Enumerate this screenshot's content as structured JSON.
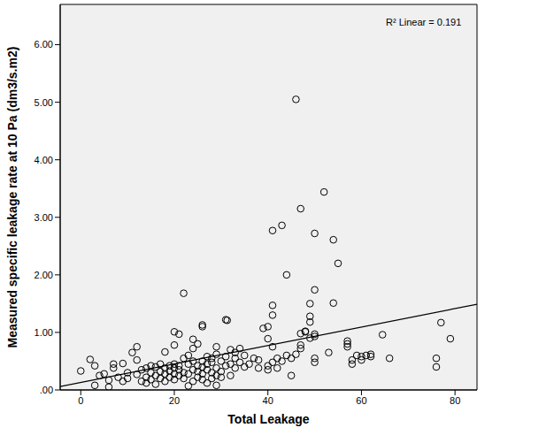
{
  "chart_data": {
    "type": "scatter",
    "x_label": "Total Leakage",
    "y_label": "Measured specific leakage rate at 10 Pa (dm3/s.m2)",
    "annotation": "R² Linear = 0.191",
    "color": "#000000",
    "marker": "circle-open",
    "grid": false,
    "xlim": [
      -4.4,
      84.7
    ],
    "xticks": [
      0,
      20,
      40,
      60,
      80
    ],
    "ylim": [
      0,
      6.7
    ],
    "yticks": [
      {
        "value": 0,
        "label": ".00"
      },
      {
        "value": 1,
        "label": "1.00"
      },
      {
        "value": 2,
        "label": "2.00"
      },
      {
        "value": 3,
        "label": "3.00"
      },
      {
        "value": 4,
        "label": "4.00"
      },
      {
        "value": 5,
        "label": "5.00"
      },
      {
        "value": 6,
        "label": "6.00"
      }
    ],
    "x": [
      0,
      2,
      3,
      3,
      4,
      5,
      6,
      6,
      7,
      7,
      8,
      9,
      9,
      10,
      10,
      11,
      12,
      12,
      12,
      13,
      13,
      14,
      14,
      14,
      15,
      15,
      15,
      16,
      16,
      16,
      17,
      17,
      17,
      18,
      18,
      18,
      18,
      19,
      19,
      19,
      20,
      20,
      20,
      20,
      20,
      21,
      21,
      21,
      22,
      22,
      22,
      23,
      23,
      23,
      23,
      24,
      24,
      24,
      24,
      25,
      25,
      25,
      25,
      26,
      26,
      26,
      26,
      27,
      27,
      27,
      27,
      28,
      28,
      28,
      28,
      29,
      29,
      29,
      29,
      29,
      30,
      30,
      30,
      31,
      31,
      32,
      32,
      32,
      33,
      33,
      33,
      34,
      34,
      35,
      35,
      36,
      37,
      38,
      38,
      40,
      40,
      41,
      41,
      42,
      42,
      43,
      44,
      45,
      45,
      46,
      47,
      47,
      48,
      49,
      50,
      50,
      53,
      57,
      57,
      57,
      58,
      58,
      59,
      60,
      60,
      61,
      62,
      62,
      66,
      76,
      76,
      46,
      52,
      47,
      43,
      41,
      50,
      54,
      55,
      44,
      50,
      22,
      41,
      49,
      54,
      41,
      49,
      31,
      31.3,
      26,
      26,
      40,
      39,
      49,
      77,
      20,
      21,
      47,
      50,
      50,
      48,
      64.5,
      79,
      40,
      24
    ],
    "values": [
      0.33,
      0.53,
      0.42,
      0.08,
      0.25,
      0.28,
      0.05,
      0.17,
      0.45,
      0.38,
      0.22,
      0.15,
      0.46,
      0.2,
      0.3,
      0.65,
      0.75,
      0.52,
      0.27,
      0.35,
      0.15,
      0.12,
      0.22,
      0.38,
      0.18,
      0.42,
      0.3,
      0.25,
      0.1,
      0.4,
      0.45,
      0.2,
      0.32,
      0.15,
      0.28,
      0.66,
      0.38,
      0.22,
      0.42,
      0.33,
      0.18,
      0.28,
      0.38,
      0.45,
      0.78,
      0.35,
      0.25,
      0.42,
      0.55,
      0.3,
      0.2,
      0.07,
      0.45,
      0.6,
      0.28,
      0.35,
      0.5,
      0.15,
      0.72,
      0.42,
      0.32,
      0.22,
      0.8,
      0.5,
      0.4,
      0.18,
      0.28,
      0.12,
      0.45,
      0.58,
      0.35,
      0.2,
      0.48,
      0.3,
      0.55,
      0.08,
      0.25,
      0.38,
      0.62,
      0.75,
      0.5,
      0.22,
      0.32,
      0.42,
      0.58,
      0.25,
      0.45,
      0.7,
      0.38,
      0.55,
      0.65,
      0.48,
      0.72,
      0.4,
      0.6,
      0.45,
      0.55,
      0.38,
      0.52,
      0.42,
      0.35,
      0.48,
      0.75,
      0.55,
      0.38,
      0.5,
      0.6,
      0.25,
      0.55,
      0.62,
      0.72,
      0.78,
      1.02,
      0.9,
      0.55,
      0.48,
      0.65,
      0.85,
      0.8,
      0.75,
      0.52,
      0.45,
      0.6,
      0.58,
      0.52,
      0.6,
      0.62,
      0.58,
      0.55,
      0.55,
      0.4,
      5.05,
      3.44,
      3.15,
      2.86,
      2.77,
      2.72,
      2.61,
      2.2,
      2.0,
      1.74,
      1.68,
      1.47,
      1.5,
      1.51,
      1.3,
      1.28,
      1.22,
      1.21,
      1.13,
      1.1,
      1.1,
      1.07,
      1.18,
      1.17,
      1.01,
      0.97,
      0.98,
      0.97,
      0.93,
      1.01,
      0.96,
      0.89,
      0.89,
      0.88
    ],
    "fit_line": {
      "x": [
        -4.4,
        84.7
      ],
      "y": [
        0.06,
        1.49
      ],
      "color": "#000000"
    }
  }
}
